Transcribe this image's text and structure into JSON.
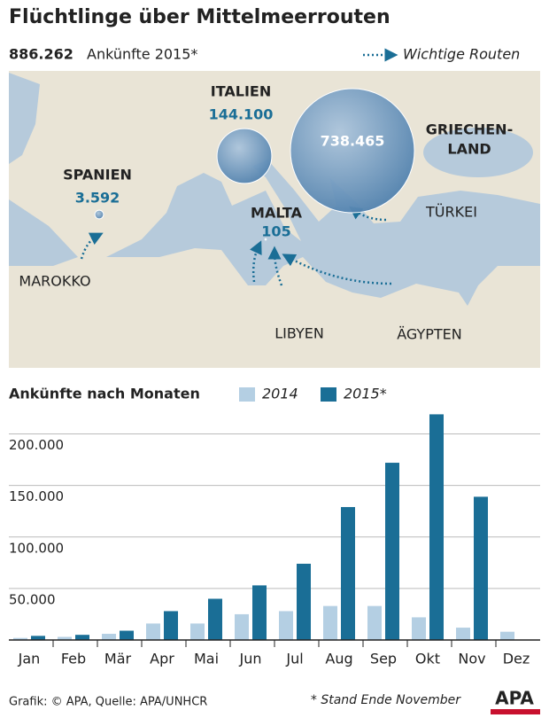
{
  "header": {
    "title": "Flüchtlinge über Mittelmeerrouten",
    "total": "886.262",
    "subtitle": "Ankünfte 2015*",
    "route_legend": "Wichtige Routen"
  },
  "map": {
    "countries": [
      {
        "name_lines": [
          "SPANIEN"
        ],
        "value": 3592,
        "value_label": "3.592"
      },
      {
        "name_lines": [
          "ITALIEN"
        ],
        "value": 144100,
        "value_label": "144.100"
      },
      {
        "name_lines": [
          "MALTA"
        ],
        "value": 105,
        "value_label": "105"
      },
      {
        "name_lines": [
          "GRIECHEN-",
          "LAND"
        ],
        "value": 738465,
        "value_label": "738.465"
      }
    ],
    "other_labels": [
      "TÜRKEI",
      "MAROKKO",
      "LIBYEN",
      "ÄGYPTEN"
    ]
  },
  "chart_data": {
    "type": "bar",
    "title": "Ankünfte nach Monaten",
    "categories": [
      "Jan",
      "Feb",
      "Mär",
      "Apr",
      "Mai",
      "Jun",
      "Jul",
      "Aug",
      "Sep",
      "Okt",
      "Nov",
      "Dez"
    ],
    "series": [
      {
        "name": "2014",
        "color": "#b4cfe3",
        "values": [
          2000,
          3000,
          6000,
          16000,
          16000,
          25000,
          28000,
          33000,
          33000,
          22000,
          12000,
          8000
        ]
      },
      {
        "name": "2015*",
        "color": "#1a6e96",
        "values": [
          4000,
          5000,
          9000,
          28000,
          40000,
          53000,
          74000,
          129000,
          172000,
          219000,
          139000,
          null
        ]
      }
    ],
    "ylim": [
      0,
      240000
    ],
    "yticks": [
      {
        "value": 50000,
        "label": "50.000"
      },
      {
        "value": 100000,
        "label": "100.000"
      },
      {
        "value": 150000,
        "label": "150.000"
      },
      {
        "value": 200000,
        "label": "200.000"
      }
    ],
    "grid": true
  },
  "footer": {
    "source": "Grafik: © APA, Quelle: APA/UNHCR",
    "note": "* Stand Ende November",
    "logo": "APA"
  }
}
